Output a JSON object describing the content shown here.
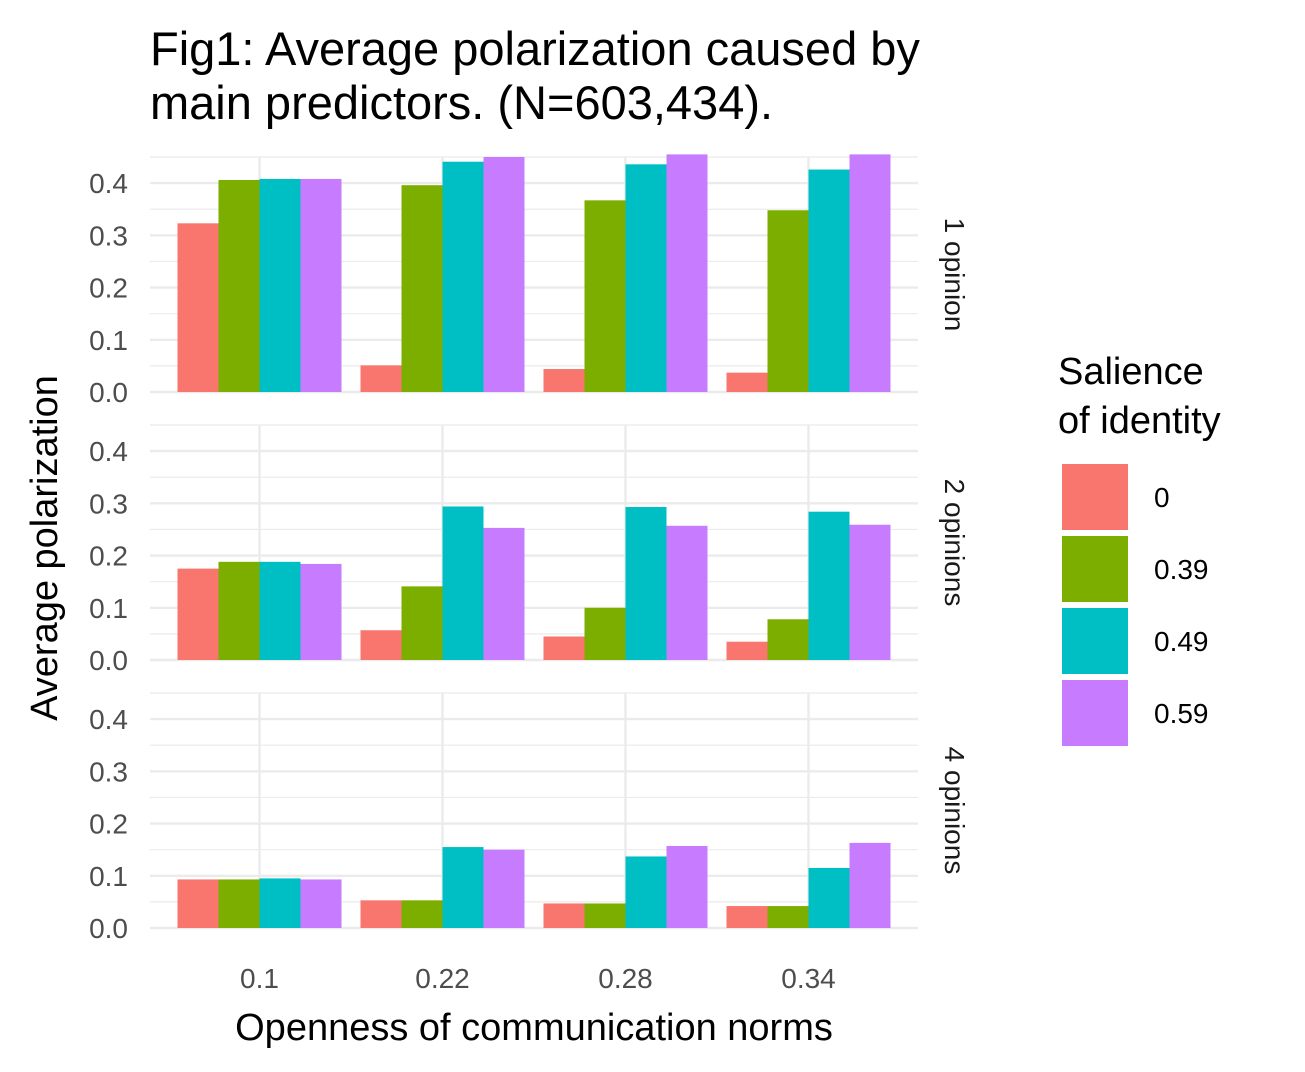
{
  "title_line1": "Fig1: Average polarization caused by",
  "title_line2": "main predictors. (N=603,434).",
  "chart_data": {
    "type": "bar",
    "xlabel": "Openness of communication norms",
    "ylabel": "Average polarization",
    "ylim": [
      0,
      0.45
    ],
    "yticks": [
      "0.0",
      "0.1",
      "0.2",
      "0.3",
      "0.4"
    ],
    "categories": [
      "0.1",
      "0.22",
      "0.28",
      "0.34"
    ],
    "legend": {
      "title_line1": "Salience",
      "title_line2": "of identity",
      "position": "right",
      "entries": [
        {
          "name": "0",
          "color": "#F8766D"
        },
        {
          "name": "0.39",
          "color": "#7CAE00"
        },
        {
          "name": "0.49",
          "color": "#00BFC4"
        },
        {
          "name": "0.59",
          "color": "#C77CFF"
        }
      ]
    },
    "grid": true,
    "panels": [
      {
        "label": "1 opinion",
        "series": [
          {
            "name": "0",
            "values": [
              0.323,
              0.051,
              0.044,
              0.037
            ]
          },
          {
            "name": "0.39",
            "values": [
              0.406,
              0.396,
              0.367,
              0.348
            ]
          },
          {
            "name": "0.49",
            "values": [
              0.408,
              0.441,
              0.436,
              0.426
            ]
          },
          {
            "name": "0.59",
            "values": [
              0.408,
              0.45,
              0.455,
              0.455
            ]
          }
        ]
      },
      {
        "label": "2 opinions",
        "series": [
          {
            "name": "0",
            "values": [
              0.175,
              0.057,
              0.045,
              0.035
            ]
          },
          {
            "name": "0.39",
            "values": [
              0.188,
              0.141,
              0.1,
              0.078
            ]
          },
          {
            "name": "0.49",
            "values": [
              0.188,
              0.294,
              0.293,
              0.284
            ]
          },
          {
            "name": "0.59",
            "values": [
              0.184,
              0.253,
              0.257,
              0.259
            ]
          }
        ]
      },
      {
        "label": "4 opinions",
        "series": [
          {
            "name": "0",
            "values": [
              0.093,
              0.053,
              0.047,
              0.042
            ]
          },
          {
            "name": "0.39",
            "values": [
              0.093,
              0.053,
              0.047,
              0.042
            ]
          },
          {
            "name": "0.49",
            "values": [
              0.095,
              0.155,
              0.137,
              0.115
            ]
          },
          {
            "name": "0.59",
            "values": [
              0.093,
              0.15,
              0.157,
              0.163
            ]
          }
        ]
      }
    ]
  }
}
